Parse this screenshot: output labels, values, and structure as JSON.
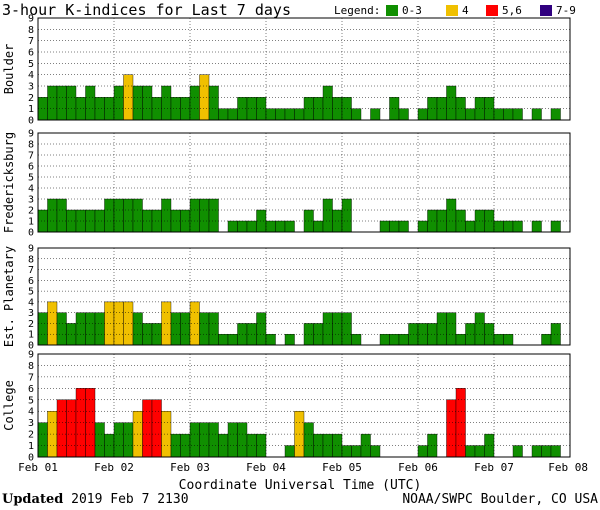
{
  "header": {
    "title": "3-hour K-indices for Last 7 days"
  },
  "legend": {
    "label": "Legend:",
    "items": [
      {
        "label": "0-3",
        "color": "#108f00"
      },
      {
        "label": "4",
        "color": "#f0c000"
      },
      {
        "label": "5,6",
        "color": "#ff0000"
      },
      {
        "label": "7-9",
        "color": "#30007f"
      }
    ]
  },
  "footer": {
    "updated_label": "Updated",
    "updated_value": "2019 Feb  7 2130",
    "source": "NOAA/SWPC Boulder, CO USA"
  },
  "chart_data": {
    "type": "bar",
    "xlabel": "Coordinate Universal Time (UTC)",
    "x_ticks": [
      "Feb 01",
      "Feb 02",
      "Feb 03",
      "Feb 04",
      "Feb 05",
      "Feb 06",
      "Feb 07",
      "Feb 08"
    ],
    "ylim": [
      0,
      9
    ],
    "y_ticks": [
      0,
      1,
      2,
      3,
      4,
      5,
      6,
      7,
      8,
      9
    ],
    "grid": true,
    "interval_hours": 3,
    "color_thresholds": {
      "0-3": "#108f00",
      "4": "#f0c000",
      "5-6": "#ff0000",
      "7-9": "#30007f"
    },
    "panels": [
      {
        "name": "Boulder",
        "values": [
          2,
          3,
          3,
          3,
          2,
          3,
          2,
          2,
          3,
          4,
          3,
          3,
          2,
          3,
          2,
          2,
          3,
          4,
          3,
          1,
          1,
          2,
          2,
          2,
          1,
          1,
          1,
          1,
          2,
          2,
          3,
          2,
          2,
          1,
          0,
          1,
          0,
          2,
          1,
          0,
          1,
          2,
          2,
          3,
          2,
          1,
          2,
          2,
          1,
          1,
          1,
          0,
          1,
          0,
          1,
          0
        ]
      },
      {
        "name": "Fredericksburg",
        "values": [
          2,
          3,
          3,
          2,
          2,
          2,
          2,
          3,
          3,
          3,
          3,
          2,
          2,
          3,
          2,
          2,
          3,
          3,
          3,
          0,
          1,
          1,
          1,
          2,
          1,
          1,
          1,
          0,
          2,
          1,
          3,
          2,
          3,
          0,
          0,
          0,
          1,
          1,
          1,
          0,
          1,
          2,
          2,
          3,
          2,
          1,
          2,
          2,
          1,
          1,
          1,
          0,
          1,
          0,
          1,
          0
        ]
      },
      {
        "name": "Est. Planetary",
        "values": [
          3,
          4,
          3,
          2,
          3,
          3,
          3,
          4,
          4,
          4,
          3,
          2,
          2,
          4,
          3,
          3,
          4,
          3,
          3,
          1,
          1,
          2,
          2,
          3,
          1,
          0,
          1,
          0,
          2,
          2,
          3,
          3,
          3,
          1,
          0,
          0,
          1,
          1,
          1,
          2,
          2,
          2,
          3,
          3,
          1,
          2,
          3,
          2,
          1,
          1,
          0,
          0,
          0,
          1,
          2,
          0
        ]
      },
      {
        "name": "College",
        "values": [
          3,
          4,
          5,
          5,
          6,
          6,
          3,
          2,
          3,
          3,
          4,
          5,
          5,
          4,
          2,
          2,
          3,
          3,
          3,
          2,
          3,
          3,
          2,
          2,
          0,
          0,
          1,
          4,
          3,
          2,
          2,
          2,
          1,
          1,
          2,
          1,
          0,
          0,
          0,
          0,
          1,
          2,
          0,
          5,
          6,
          1,
          1,
          2,
          0,
          0,
          1,
          0,
          1,
          1,
          1,
          0
        ]
      }
    ]
  }
}
